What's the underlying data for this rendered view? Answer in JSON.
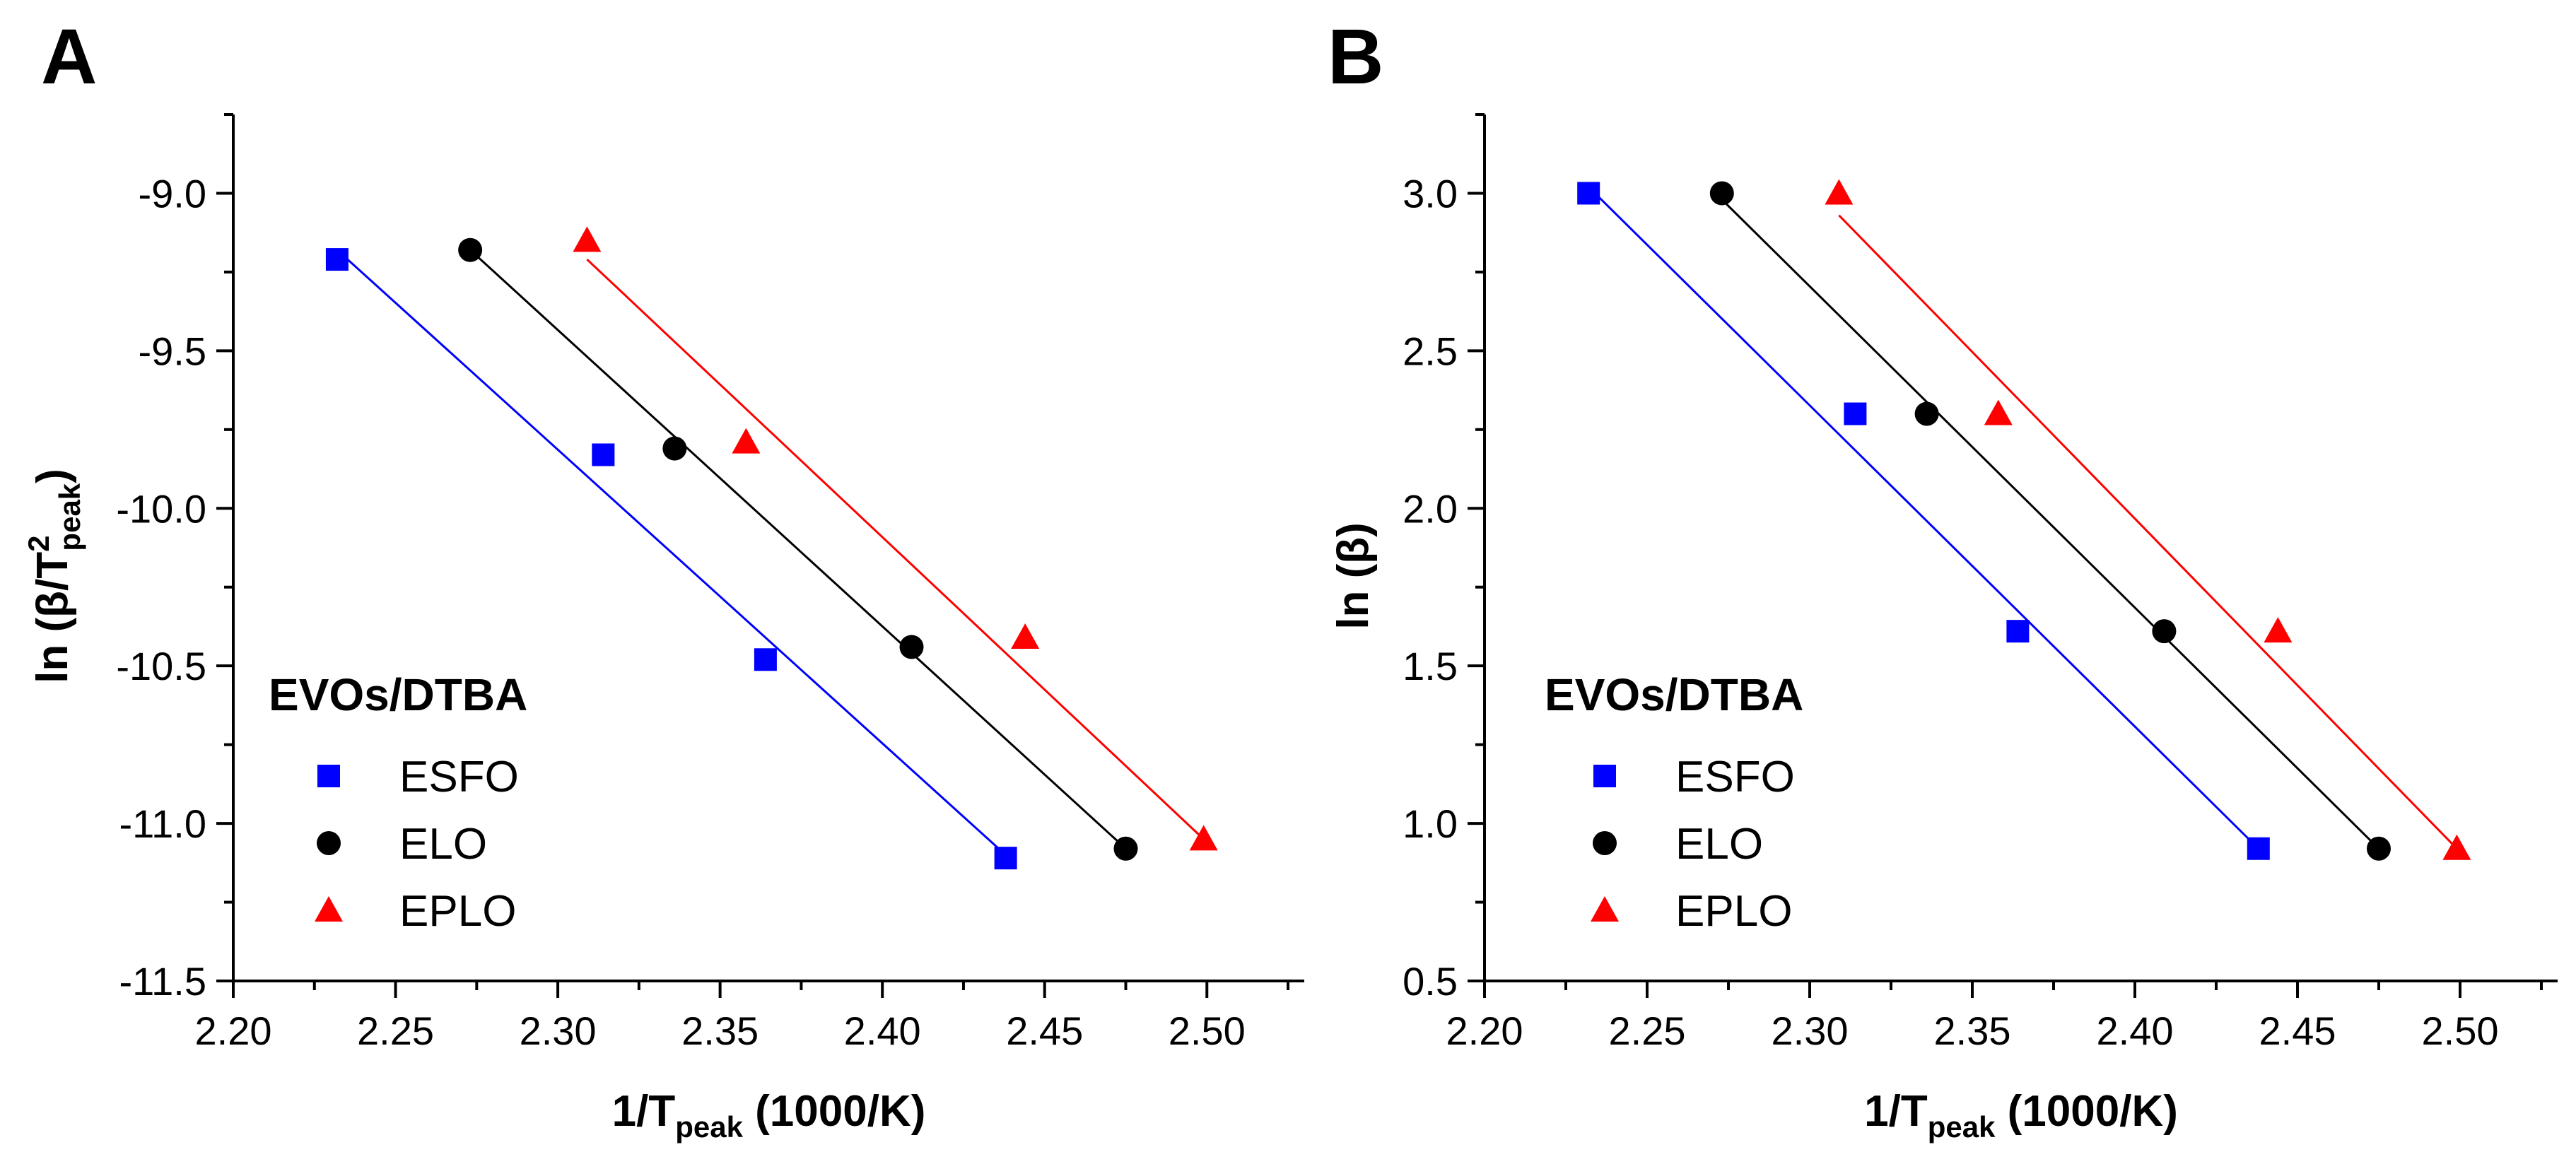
{
  "chart_data": [
    {
      "panel": "A",
      "type": "scatter",
      "xlabel": "1/Tpeak (1000/K)",
      "xlabel_parts": {
        "main": "1/T",
        "sub": "peak",
        "rest": " (1000/K)"
      },
      "ylabel": "ln (β/T2peak)",
      "ylabel_parts": {
        "main": "ln (β/T",
        "sup": "2",
        "sub": "peak",
        "rest": ")"
      },
      "xlim": [
        2.2,
        2.53
      ],
      "ylim": [
        -11.5,
        -8.75
      ],
      "xticks": [
        2.2,
        2.25,
        2.3,
        2.35,
        2.4,
        2.45,
        2.5
      ],
      "xtick_labels": [
        "2.20",
        "2.25",
        "2.30",
        "2.35",
        "2.40",
        "2.45",
        "2.50"
      ],
      "yticks": [
        -9.0,
        -9.5,
        -10.0,
        -10.5,
        -11.0,
        -11.5
      ],
      "ytick_labels": [
        "-9.0",
        "-9.5",
        "-10.0",
        "-10.5",
        "-11.0",
        "-11.5"
      ],
      "legend": {
        "title": "EVOs/DTBA",
        "position": "bottom-left"
      },
      "series": [
        {
          "name": "ESFO",
          "marker": "square",
          "color": "#0000ff",
          "x": [
            2.232,
            2.314,
            2.364,
            2.438
          ],
          "y": [
            -9.21,
            -9.83,
            -10.48,
            -11.11
          ],
          "fit": {
            "x": [
              2.232,
              2.438
            ],
            "y": [
              -9.18,
              -11.1
            ]
          }
        },
        {
          "name": "ELO",
          "marker": "circle",
          "color": "#000000",
          "x": [
            2.273,
            2.336,
            2.409,
            2.475
          ],
          "y": [
            -9.18,
            -9.81,
            -10.44,
            -11.08
          ],
          "fit": {
            "x": [
              2.273,
              2.475
            ],
            "y": [
              -9.18,
              -11.08
            ]
          }
        },
        {
          "name": "EPLO",
          "marker": "triangle",
          "color": "#ff0000",
          "x": [
            2.309,
            2.358,
            2.444,
            2.499
          ],
          "y": [
            -9.15,
            -9.79,
            -10.41,
            -11.05
          ],
          "fit": {
            "x": [
              2.309,
              2.499
            ],
            "y": [
              -9.21,
              -11.05
            ]
          }
        }
      ]
    },
    {
      "panel": "B",
      "type": "scatter",
      "xlabel": "1/Tpeak (1000/K)",
      "xlabel_parts": {
        "main": "1/T",
        "sub": "peak",
        "rest": " (1000/K)"
      },
      "ylabel": "ln (β)",
      "ylabel_parts": {
        "main": "ln (β)"
      },
      "xlim": [
        2.2,
        2.53
      ],
      "ylim": [
        0.5,
        3.25
      ],
      "xticks": [
        2.2,
        2.25,
        2.3,
        2.35,
        2.4,
        2.45,
        2.5
      ],
      "xtick_labels": [
        "2.20",
        "2.25",
        "2.30",
        "2.35",
        "2.40",
        "2.45",
        "2.50"
      ],
      "yticks": [
        3.0,
        2.5,
        2.0,
        1.5,
        1.0,
        0.5
      ],
      "ytick_labels": [
        "3.0",
        "2.5",
        "2.0",
        "1.5",
        "1.0",
        "0.5"
      ],
      "legend": {
        "title": "EVOs/DTBA",
        "position": "bottom-left"
      },
      "series": [
        {
          "name": "ESFO",
          "marker": "square",
          "color": "#0000ff",
          "x": [
            2.232,
            2.314,
            2.364,
            2.438
          ],
          "y": [
            3.0,
            2.3,
            1.61,
            0.92
          ],
          "fit": {
            "x": [
              2.232,
              2.438
            ],
            "y": [
              3.02,
              0.92
            ]
          }
        },
        {
          "name": "ELO",
          "marker": "circle",
          "color": "#000000",
          "x": [
            2.273,
            2.336,
            2.409,
            2.475
          ],
          "y": [
            3.0,
            2.3,
            1.61,
            0.92
          ],
          "fit": {
            "x": [
              2.273,
              2.475
            ],
            "y": [
              2.98,
              0.92
            ]
          }
        },
        {
          "name": "EPLO",
          "marker": "triangle",
          "color": "#ff0000",
          "x": [
            2.309,
            2.358,
            2.444,
            2.499
          ],
          "y": [
            3.0,
            2.3,
            1.61,
            0.92
          ],
          "fit": {
            "x": [
              2.309,
              2.499
            ],
            "y": [
              2.93,
              0.92
            ]
          }
        }
      ]
    }
  ]
}
